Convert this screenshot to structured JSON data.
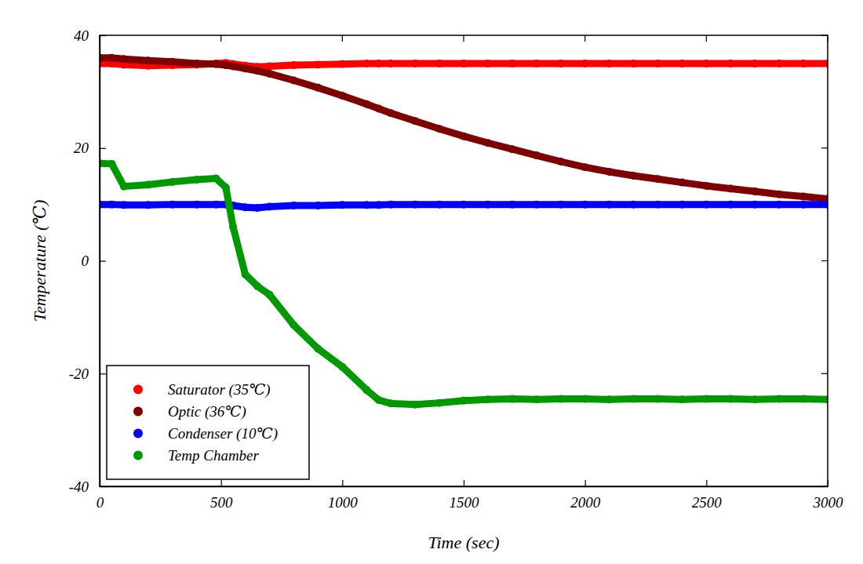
{
  "chart_data": {
    "type": "line",
    "x_label": "Time (sec)",
    "y_label": "Temperature (℃)",
    "x": [
      0,
      50,
      100,
      200,
      300,
      400,
      480,
      520,
      550,
      600,
      650,
      700,
      800,
      900,
      1000,
      1100,
      1150,
      1200,
      1300,
      1400,
      1500,
      1600,
      1700,
      1800,
      1900,
      2000,
      2100,
      2200,
      2300,
      2400,
      2500,
      2600,
      2700,
      2800,
      2900,
      3000
    ],
    "series": [
      {
        "name": "Saturator (35℃)",
        "color": "#ff0000",
        "marker": "circle",
        "values": [
          35,
          35,
          34.8,
          34.6,
          34.7,
          34.8,
          35,
          35.1,
          34.9,
          34.6,
          34.4,
          34.5,
          34.7,
          34.8,
          34.9,
          35,
          35,
          35,
          35,
          35,
          35,
          35,
          35,
          35,
          35,
          35,
          35,
          35,
          35,
          35,
          35,
          35,
          35,
          35,
          35,
          35
        ]
      },
      {
        "name": "Optic (36℃)",
        "color": "#7f0000",
        "marker": "circle",
        "values": [
          36,
          36,
          35.8,
          35.5,
          35.3,
          35,
          34.9,
          34.7,
          34.5,
          34.1,
          33.7,
          33.2,
          32,
          30.7,
          29.3,
          27.8,
          27,
          26.2,
          24.8,
          23.4,
          22.1,
          20.9,
          19.8,
          18.7,
          17.6,
          16.6,
          15.8,
          15.1,
          14.5,
          13.9,
          13.3,
          12.8,
          12.3,
          11.8,
          11.4,
          11
        ]
      },
      {
        "name": "Condenser (10℃)",
        "color": "#0000ff",
        "marker": "circle",
        "values": [
          10,
          10,
          9.9,
          9.9,
          10,
          10,
          10,
          10,
          9.8,
          9.5,
          9.4,
          9.6,
          9.8,
          9.8,
          9.9,
          9.9,
          9.9,
          10,
          10,
          10,
          10,
          10,
          10,
          10,
          10,
          10,
          10,
          10,
          10,
          10,
          10,
          10,
          10,
          10,
          10,
          10
        ]
      },
      {
        "name": "Temp Chamber",
        "color": "#009900",
        "marker": "circle",
        "values": [
          17.3,
          17.2,
          13.2,
          13.5,
          14,
          14.4,
          14.6,
          13,
          6,
          -2.4,
          -4.5,
          -6,
          -11.4,
          -15.6,
          -18.8,
          -22.9,
          -24.7,
          -25.3,
          -25.5,
          -25.2,
          -24.8,
          -24.6,
          -24.5,
          -24.6,
          -24.5,
          -24.5,
          -24.6,
          -24.5,
          -24.5,
          -24.6,
          -24.5,
          -24.5,
          -24.6,
          -24.5,
          -24.5,
          -24.6
        ]
      }
    ],
    "xlim": [
      0,
      3000
    ],
    "xticks": [
      0,
      500,
      1000,
      1500,
      2000,
      2500,
      3000
    ],
    "ylim": [
      -40,
      40
    ],
    "yticks": [
      -40,
      -20,
      0,
      20,
      40
    ],
    "grid": false,
    "legend": "lower left"
  }
}
